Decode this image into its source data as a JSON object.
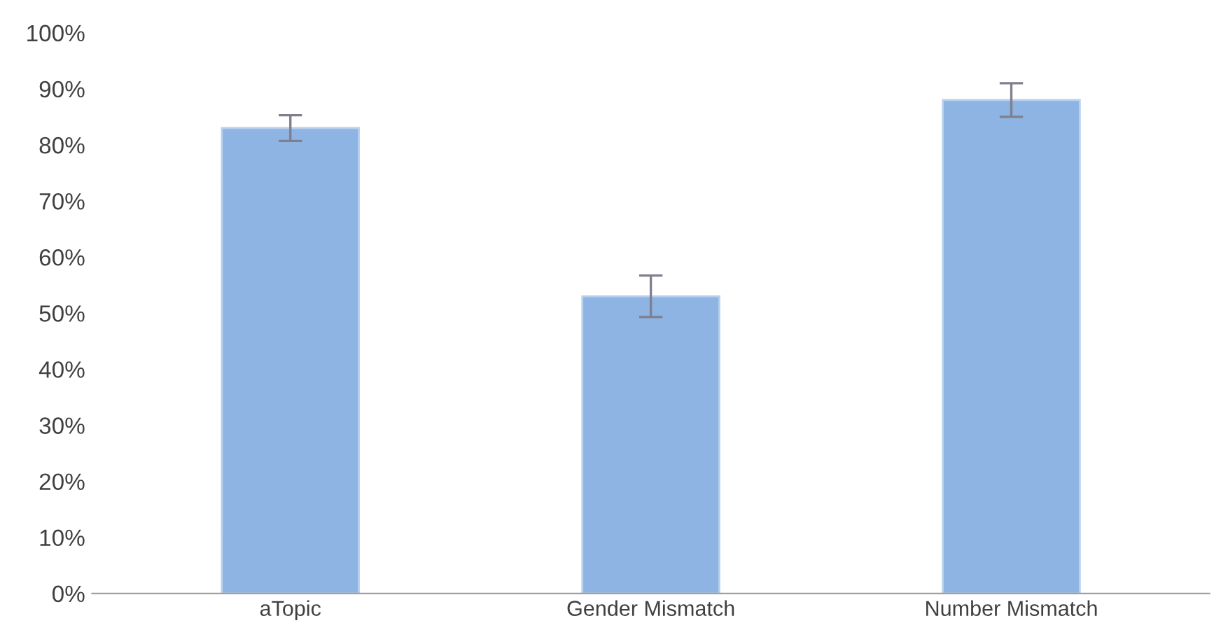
{
  "chart_data": {
    "type": "bar",
    "categories": [
      "aTopic",
      "Gender Mismatch",
      "Number Mismatch"
    ],
    "values": [
      83,
      53,
      88
    ],
    "errors": [
      2.3,
      3.7,
      3
    ],
    "color": "#8db4e2",
    "ylim": [
      0,
      100
    ],
    "yticks": [
      {
        "value": 0,
        "label": "0%"
      },
      {
        "value": 10,
        "label": "10%"
      },
      {
        "value": 20,
        "label": "20%"
      },
      {
        "value": 30,
        "label": "30%"
      },
      {
        "value": 40,
        "label": "40%"
      },
      {
        "value": 50,
        "label": "50%"
      },
      {
        "value": 60,
        "label": "60%"
      },
      {
        "value": 70,
        "label": "70%"
      },
      {
        "value": 80,
        "label": "80%"
      },
      {
        "value": 90,
        "label": "90%"
      },
      {
        "value": 100,
        "label": "100%"
      }
    ],
    "grid": false,
    "legend": false
  }
}
